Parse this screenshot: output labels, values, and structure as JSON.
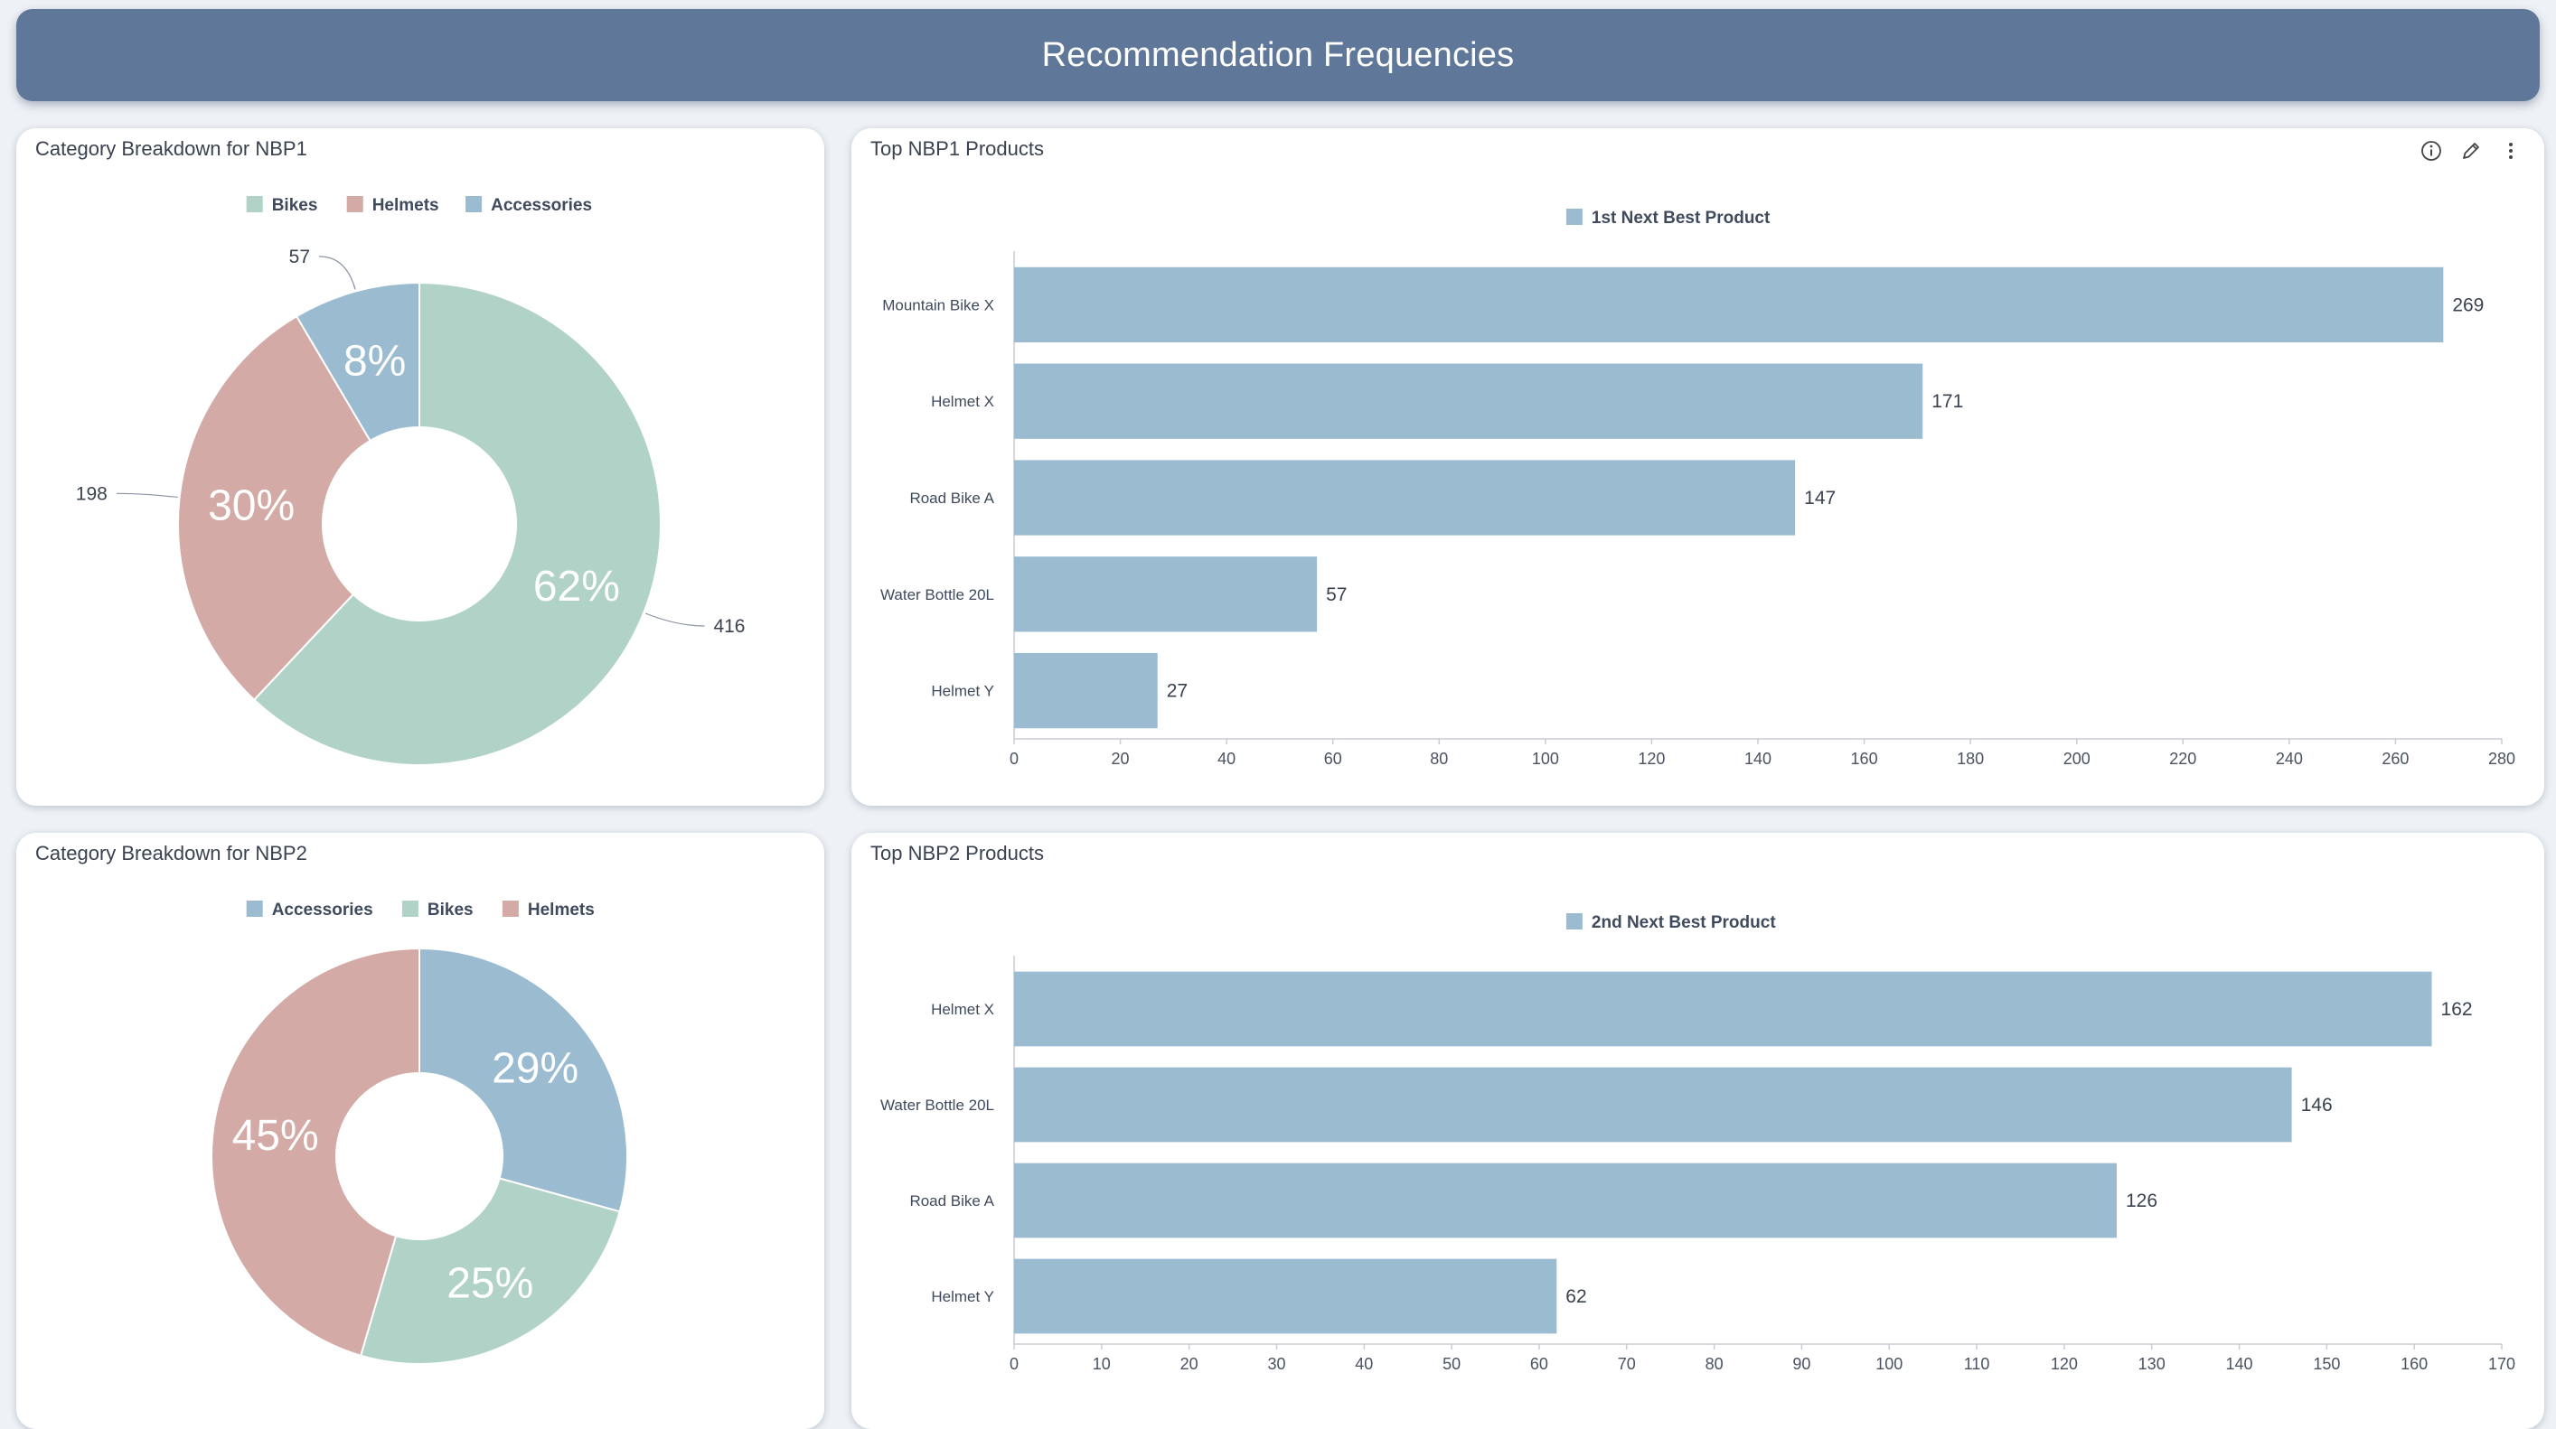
{
  "header": {
    "title": "Recommendation Frequencies"
  },
  "panels": {
    "nbp1_breakdown": {
      "title": "Category Breakdown for NBP1"
    },
    "nbp1_products": {
      "title": "Top NBP1 Products"
    },
    "nbp2_breakdown": {
      "title": "Category Breakdown for NBP2"
    },
    "nbp2_products": {
      "title": "Top NBP2 Products"
    }
  },
  "toolbar": {
    "icons": [
      "info-icon",
      "edit-icon",
      "more-vertical-icon"
    ]
  },
  "colors": {
    "bikes": "#b0d2c7",
    "helmets": "#d4aaa6",
    "accessories": "#9bbcd0",
    "bar": "#9bbcd0",
    "header": "#5f7799"
  },
  "chart_data": [
    {
      "id": "pie1",
      "type": "pie",
      "title": "",
      "legend": [
        "Bikes",
        "Helmets",
        "Accessories"
      ],
      "legend_position": "top",
      "slices": [
        {
          "label": "Bikes",
          "value": 416,
          "percent": "62%",
          "color": "#b0d2c7"
        },
        {
          "label": "Helmets",
          "value": 198,
          "percent": "30%",
          "color": "#d4aaa6"
        },
        {
          "label": "Accessories",
          "value": 57,
          "percent": "8%",
          "color": "#9bbcd0"
        }
      ],
      "show_value_labels": true
    },
    {
      "id": "bar1",
      "type": "bar",
      "orientation": "horizontal",
      "series_name": "1st Next Best Product",
      "categories": [
        "Mountain Bike X",
        "Helmet X",
        "Road Bike A",
        "Water Bottle 20L",
        "Helmet Y"
      ],
      "values": [
        269,
        171,
        147,
        57,
        27
      ],
      "xlim": [
        0,
        280
      ],
      "ticks": [
        0,
        20,
        40,
        60,
        80,
        100,
        120,
        140,
        160,
        180,
        200,
        220,
        240,
        260,
        280
      ],
      "legend_position": "top"
    },
    {
      "id": "pie2",
      "type": "pie",
      "title": "",
      "legend": [
        "Accessories",
        "Bikes",
        "Helmets"
      ],
      "legend_position": "top",
      "slices": [
        {
          "label": "Accessories",
          "value": 29,
          "percent": "29%",
          "color": "#9bbcd0"
        },
        {
          "label": "Bikes",
          "value": 25,
          "percent": "25%",
          "color": "#b0d2c7"
        },
        {
          "label": "Helmets",
          "value": 45,
          "percent": "45%",
          "color": "#d4aaa6"
        }
      ],
      "show_value_labels": false
    },
    {
      "id": "bar2",
      "type": "bar",
      "orientation": "horizontal",
      "series_name": "2nd Next Best Product",
      "categories": [
        "Helmet X",
        "Water Bottle 20L",
        "Road Bike A",
        "Helmet Y"
      ],
      "values": [
        162,
        146,
        126,
        62
      ],
      "xlim": [
        0,
        170
      ],
      "ticks": [
        0,
        10,
        20,
        30,
        40,
        50,
        60,
        70,
        80,
        90,
        100,
        110,
        120,
        130,
        140,
        150,
        160,
        170
      ],
      "legend_position": "top"
    }
  ]
}
